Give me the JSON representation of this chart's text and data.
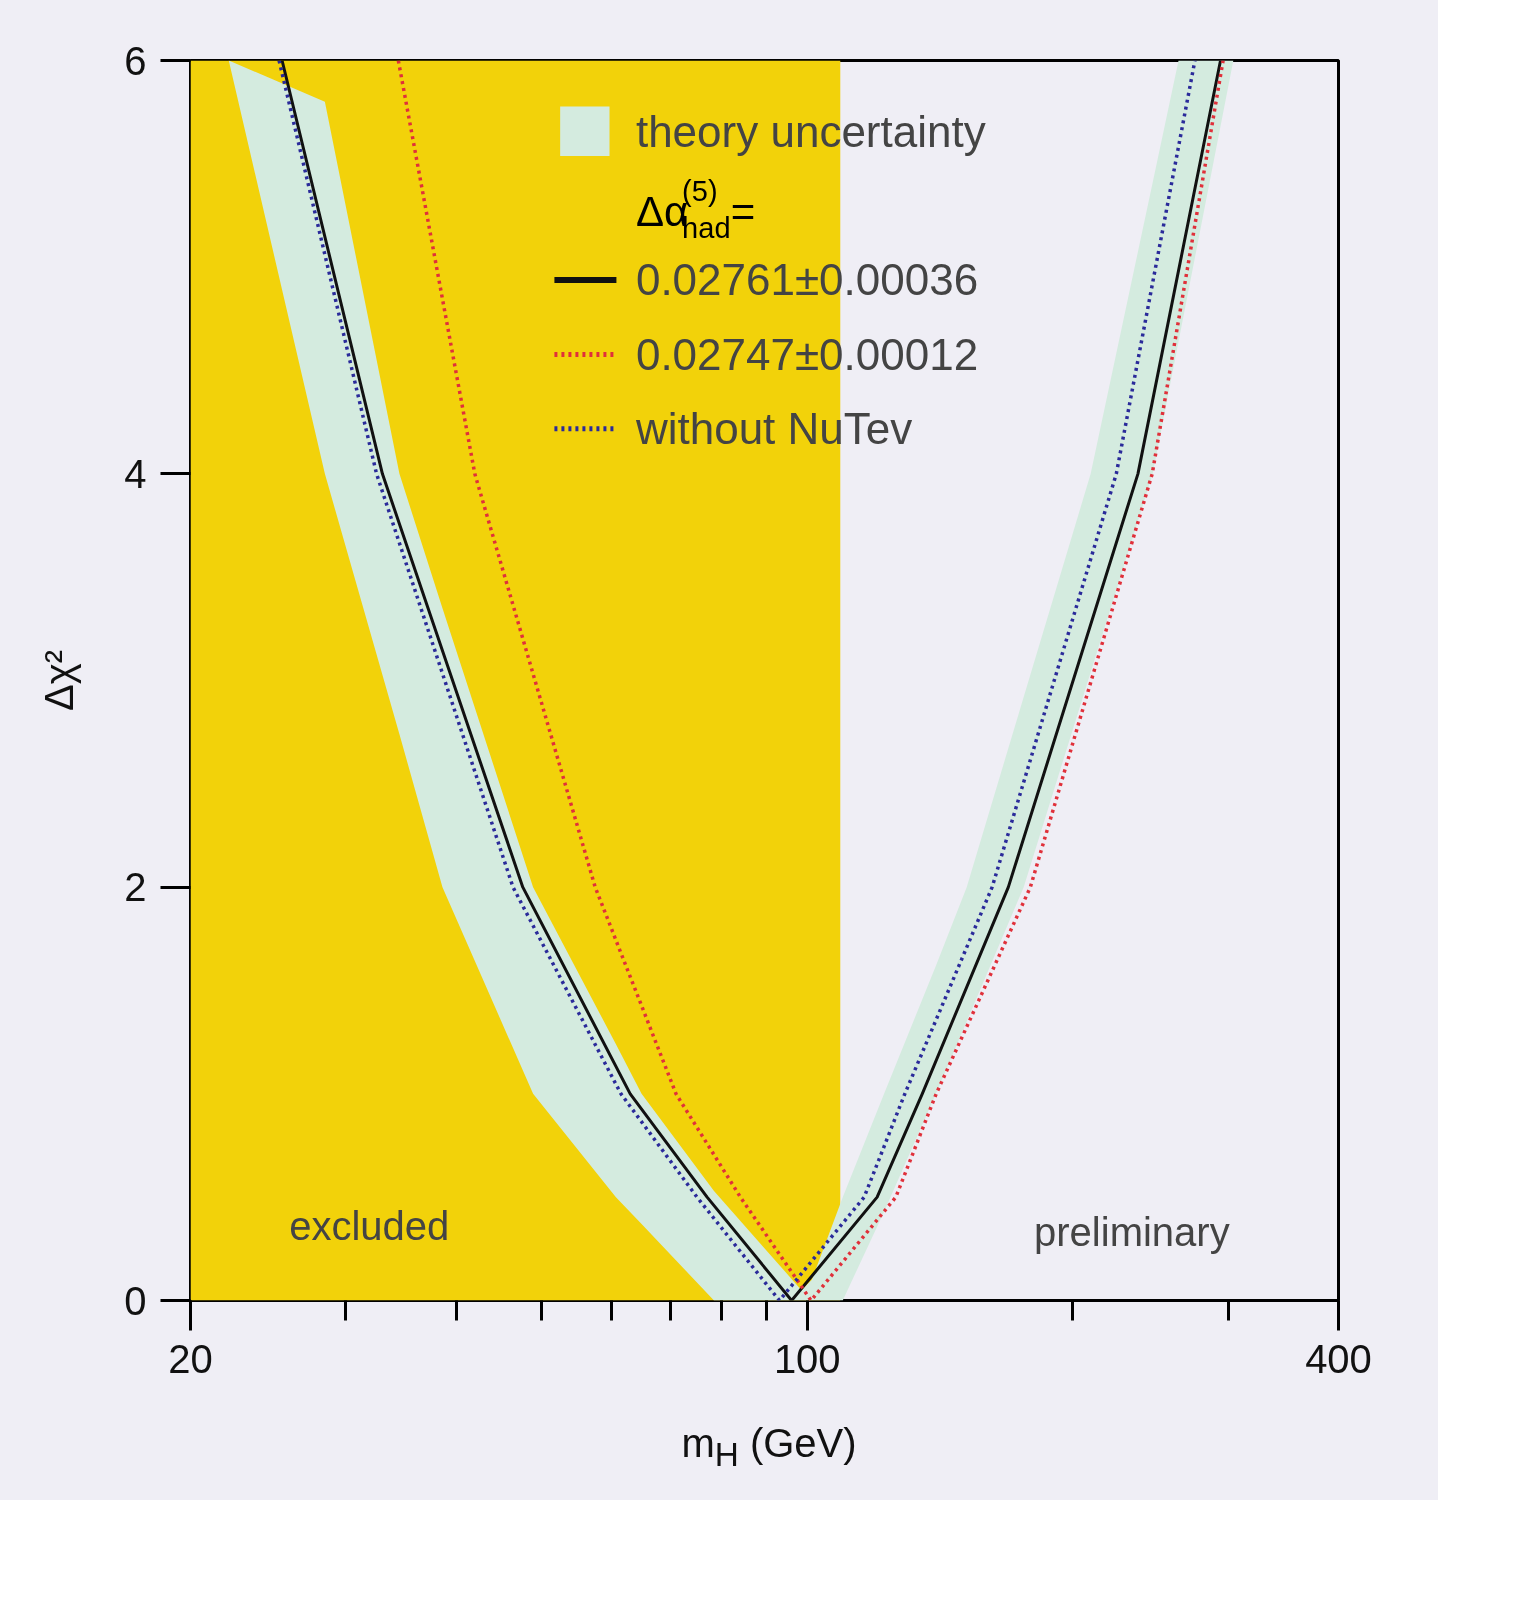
{
  "chart_data": {
    "type": "line",
    "xlabel": "m$_{H}$ (GeV)",
    "ylabel": "Δχ²",
    "log": "x",
    "xlim": [
      20,
      400
    ],
    "ylim": [
      0,
      6
    ],
    "xticks": [
      20,
      100,
      400
    ],
    "yticks": [
      0,
      2,
      4,
      6
    ],
    "grid": false,
    "legend": "top",
    "legend_title": "Δα$_{had}$$^{(5)}$ =",
    "bands": [
      {
        "axis": "x",
        "from": 20,
        "to": 109,
        "label": "excluded",
        "color": "#f2d20a"
      }
    ],
    "annotations": [
      "preliminary"
    ],
    "series": [
      {
        "name": "theory uncertainty",
        "type": "area",
        "color": "#d4ebdf",
        "x": [
          22.1,
          28.4,
          34.5,
          38.6,
          48.9,
          60.7,
          64.9,
          78.4,
          98.5,
          101.2,
          109.7,
          122.2,
          139.9,
          151.6,
          175.9,
          209.5,
          246.3,
          263.5,
          304
        ],
        "values": [
          null,
          null,
          null,
          null,
          null,
          null,
          null,
          null,
          null,
          null,
          null,
          null,
          null,
          null,
          null,
          null,
          null,
          null,
          null
        ],
        "lower": [
          6,
          4,
          2.74,
          2,
          1,
          0.5,
          0.37,
          0,
          0,
          0,
          0,
          0.43,
          1,
          1.35,
          2,
          3.04,
          4,
          4.64,
          6
        ],
        "upper": [
          6,
          5.8,
          4,
          3.35,
          2,
          1.24,
          1,
          0.53,
          0.05,
          0.1,
          0.5,
          1,
          1.62,
          2,
          2.92,
          4,
          5.41,
          6,
          6
        ]
      },
      {
        "name": "0.02761±0.00036",
        "color": "#111111",
        "line_style": "solid",
        "x": [
          25.4,
          33,
          47.6,
          63,
          77,
          96,
          120,
          135,
          169,
          237,
          294
        ],
        "values": [
          6,
          4,
          2,
          1,
          0.5,
          0,
          0.5,
          1,
          2,
          4,
          6
        ]
      },
      {
        "name": "0.02747±0.00012",
        "color": "#e0303a",
        "line_style": "dotted",
        "x": [
          34.4,
          42,
          57.5,
          71,
          84,
          101,
          126,
          140,
          179,
          246,
          296
        ],
        "values": [
          6,
          4,
          2,
          1,
          0.5,
          0,
          0.5,
          1,
          2,
          4,
          6
        ]
      },
      {
        "name": "without NuTev",
        "color": "#2a2a9a",
        "line_style": "dotted",
        "x": [
          25.2,
          32.5,
          46.4,
          61.5,
          75,
          93,
          116,
          129,
          162,
          224,
          275
        ],
        "values": [
          6,
          4,
          2,
          1,
          0.5,
          0,
          0.5,
          1,
          2,
          4,
          6
        ]
      }
    ]
  }
}
